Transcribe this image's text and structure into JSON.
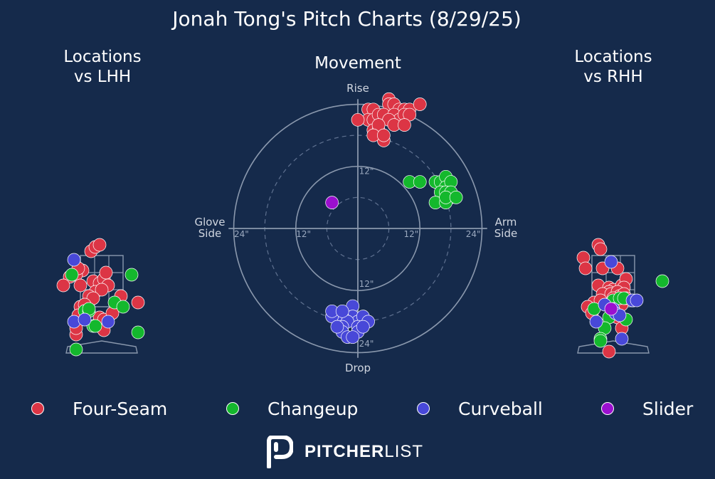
{
  "title": "Jonah Tong's Pitch Charts (8/29/25)",
  "panels": {
    "lhh_title": "Locations\nvs LHH",
    "movement_title": "Movement",
    "rhh_title": "Locations\nvs RHH"
  },
  "logo": {
    "bold": "PITCHER",
    "light": "LIST",
    "icon": "pitcherlist-p-icon"
  },
  "colors": {
    "background": "#152a4b",
    "Four-Seam": "#dc3545",
    "Changeup": "#14b82d",
    "Curveball": "#4848d8",
    "Slider": "#9b10cf",
    "grid": "#8a98ad"
  },
  "chart_data": [
    {
      "type": "scatter",
      "name": "Locations vs LHH",
      "title": "Locations\nvs LHH",
      "x_range": [
        -30,
        30
      ],
      "y_range": [
        -8,
        60
      ],
      "strike_zone": {
        "x": [
          -10,
          10
        ],
        "y": [
          18,
          42
        ]
      },
      "series": [
        {
          "name": "Four-Seam",
          "points": [
            [
              -5,
              44
            ],
            [
              -3,
              46
            ],
            [
              -1,
              47
            ],
            [
              -9,
              35
            ],
            [
              -12,
              33
            ],
            [
              -11,
              36
            ],
            [
              -15,
              32
            ],
            [
              -10,
              28
            ],
            [
              -4,
              30
            ],
            [
              -1,
              29
            ],
            [
              -3,
              25
            ],
            [
              1,
              31
            ],
            [
              2,
              34
            ],
            [
              3,
              28
            ],
            [
              0,
              26
            ],
            [
              -6,
              23
            ],
            [
              -4,
              22
            ],
            [
              -10,
              18
            ],
            [
              -8,
              19
            ],
            [
              -11,
              14
            ],
            [
              -1,
              13
            ],
            [
              1,
              12
            ],
            [
              5,
              15
            ],
            [
              -12,
              5
            ],
            [
              -12,
              8
            ],
            [
              1,
              7
            ],
            [
              9,
              23
            ],
            [
              17,
              20
            ],
            [
              -18,
              28
            ]
          ]
        },
        {
          "name": "Changeup",
          "points": [
            [
              -14,
              33
            ],
            [
              14,
              33
            ],
            [
              -8,
              16
            ],
            [
              -6,
              16
            ],
            [
              -6,
              17
            ],
            [
              -4,
              9
            ],
            [
              -3,
              9
            ],
            [
              6,
              20
            ],
            [
              10,
              18
            ],
            [
              17,
              6
            ],
            [
              -12,
              -2
            ]
          ]
        },
        {
          "name": "Curveball",
          "points": [
            [
              -13,
              40
            ],
            [
              -13,
              11
            ],
            [
              -8,
              12
            ],
            [
              3,
              11
            ]
          ]
        }
      ]
    },
    {
      "type": "scatter",
      "name": "Movement",
      "title": "Movement",
      "x_range": [
        -24,
        24
      ],
      "y_range": [
        -24,
        24
      ],
      "rings": [
        6,
        12,
        18,
        24
      ],
      "axis_labels": {
        "top": "Rise",
        "bottom": "Drop",
        "left": "Glove\nSide",
        "right": "Arm\nSide"
      },
      "tick_labels": [
        "12\"",
        "24\""
      ],
      "series": [
        {
          "name": "Four-Seam",
          "points": [
            [
              6,
              25
            ],
            [
              2,
              23
            ],
            [
              3,
              23
            ],
            [
              6,
              24
            ],
            [
              7,
              24
            ],
            [
              8,
              23
            ],
            [
              9,
              23
            ],
            [
              10,
              23
            ],
            [
              2,
              21
            ],
            [
              3,
              21
            ],
            [
              4,
              22
            ],
            [
              5,
              22
            ],
            [
              7,
              22
            ],
            [
              8,
              21
            ],
            [
              9,
              22
            ],
            [
              10,
              22
            ],
            [
              3,
              19
            ],
            [
              4,
              19
            ],
            [
              6,
              21
            ],
            [
              7,
              20
            ],
            [
              0,
              21
            ],
            [
              4,
              20
            ],
            [
              9,
              20
            ],
            [
              12,
              24
            ],
            [
              5,
              17
            ],
            [
              3,
              18
            ],
            [
              5,
              18
            ]
          ]
        },
        {
          "name": "Changeup",
          "points": [
            [
              10,
              9
            ],
            [
              12,
              9
            ],
            [
              15,
              9
            ],
            [
              16,
              9
            ],
            [
              17,
              10
            ],
            [
              17,
              8
            ],
            [
              18,
              9
            ],
            [
              16,
              7
            ],
            [
              17,
              7
            ],
            [
              18,
              6
            ],
            [
              15,
              5
            ],
            [
              17,
              5
            ],
            [
              18,
              7
            ],
            [
              17,
              6
            ],
            [
              19,
              6
            ]
          ]
        },
        {
          "name": "Curveball",
          "points": [
            [
              -1,
              -15
            ],
            [
              -1,
              -17
            ],
            [
              0,
              -18
            ],
            [
              1,
              -17
            ],
            [
              2,
              -18
            ],
            [
              -3,
              -17
            ],
            [
              -2,
              -18
            ],
            [
              -3,
              -19
            ],
            [
              -3,
              -20
            ],
            [
              -2,
              -21
            ],
            [
              0,
              -19
            ],
            [
              0,
              -20
            ],
            [
              -5,
              -17
            ],
            [
              -5,
              -16
            ],
            [
              -3,
              -16
            ],
            [
              -4,
              -19
            ],
            [
              -1,
              -21
            ],
            [
              1,
              -19
            ]
          ]
        },
        {
          "name": "Slider",
          "points": [
            [
              -5,
              5
            ]
          ]
        }
      ]
    },
    {
      "type": "scatter",
      "name": "Locations vs RHH",
      "title": "Locations\nvs RHH",
      "x_range": [
        -30,
        30
      ],
      "y_range": [
        -8,
        60
      ],
      "strike_zone": {
        "x": [
          -10,
          10
        ],
        "y": [
          18,
          42
        ]
      },
      "series": [
        {
          "name": "Four-Seam",
          "points": [
            [
              -7,
              47
            ],
            [
              -6,
              45
            ],
            [
              -14,
              41
            ],
            [
              -5,
              36
            ],
            [
              -13,
              36
            ],
            [
              2,
              36
            ],
            [
              -7,
              28
            ],
            [
              -2,
              27
            ],
            [
              0,
              26
            ],
            [
              4,
              28
            ],
            [
              6,
              31
            ],
            [
              5,
              27
            ],
            [
              -2,
              25
            ],
            [
              -5,
              24
            ],
            [
              -1,
              24
            ],
            [
              2,
              25
            ],
            [
              3,
              23
            ],
            [
              5,
              24
            ],
            [
              -9,
              20
            ],
            [
              -6,
              21
            ],
            [
              -12,
              18
            ],
            [
              -2,
              19
            ],
            [
              0,
              22
            ],
            [
              1,
              20
            ],
            [
              4,
              19
            ],
            [
              6,
              22
            ],
            [
              -10,
              15
            ],
            [
              2,
              13
            ],
            [
              4,
              8
            ],
            [
              -2,
              -3
            ]
          ]
        },
        {
          "name": "Changeup",
          "points": [
            [
              -9,
              17
            ],
            [
              -2,
              13
            ],
            [
              -4,
              8
            ],
            [
              -2,
              19
            ],
            [
              0,
              21
            ],
            [
              3,
              22
            ],
            [
              5,
              22
            ],
            [
              6,
              12
            ],
            [
              -6,
              3
            ],
            [
              -6,
              2
            ],
            [
              23,
              30
            ]
          ]
        },
        {
          "name": "Curveball",
          "points": [
            [
              -1,
              39
            ],
            [
              -4,
              19
            ],
            [
              0,
              17
            ],
            [
              1,
              15
            ],
            [
              3,
              14
            ],
            [
              9,
              21
            ],
            [
              11,
              21
            ],
            [
              -8,
              11
            ],
            [
              4,
              3
            ]
          ]
        },
        {
          "name": "Slider",
          "points": [
            [
              -1,
              17
            ]
          ]
        }
      ]
    }
  ],
  "legend": [
    {
      "label": "Four-Seam",
      "color": "#dc3545"
    },
    {
      "label": "Changeup",
      "color": "#14b82d"
    },
    {
      "label": "Curveball",
      "color": "#4848d8"
    },
    {
      "label": "Slider",
      "color": "#9b10cf"
    }
  ]
}
